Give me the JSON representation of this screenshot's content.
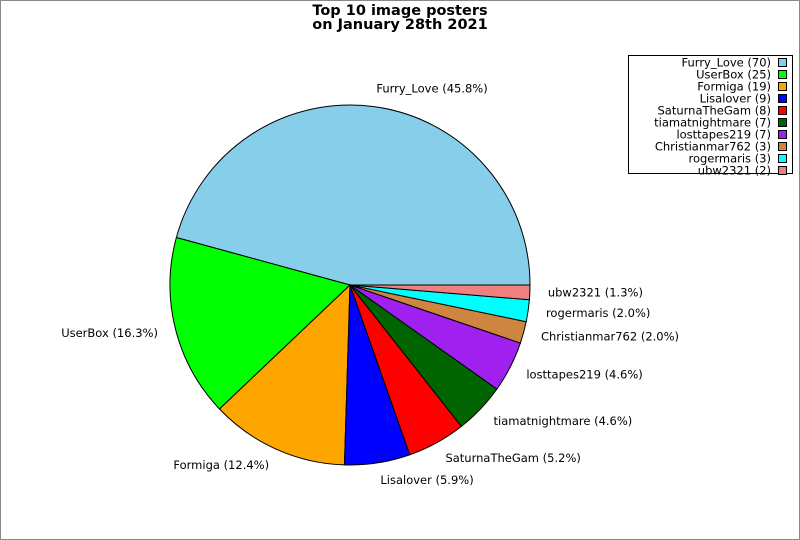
{
  "chart_data": {
    "type": "pie",
    "title_lines": [
      "Top 10 image posters",
      "on January 28th 2021"
    ],
    "categories": [
      "Furry_Love",
      "UserBox",
      "Formiga",
      "Lisalover",
      "SaturnaTheGam",
      "tiamatnightmare",
      "losttapes219",
      "Christianmar762",
      "rogermaris",
      "ubw2321"
    ],
    "values": [
      70,
      25,
      19,
      9,
      8,
      7,
      7,
      3,
      3,
      2
    ],
    "value_labels": [
      "Furry_Love (45.8%)",
      "UserBox (16.3%)",
      "Formiga (12.4%)",
      "Lisalover (5.9%)",
      "SaturnaTheGam (5.2%)",
      "tiamatnightmare (4.6%)",
      "losttapes219 (4.6%)",
      "Christianmar762 (2.0%)",
      "rogermaris (2.0%)",
      "ubw2321 (1.3%)"
    ],
    "legend_labels": [
      "Furry_Love (70)",
      "UserBox (25)",
      "Formiga (19)",
      "Lisalover (9)",
      "SaturnaTheGam (8)",
      "tiamatnightmare (7)",
      "losttapes219 (7)",
      "Christianmar762 (3)",
      "rogermaris (3)",
      "ubw2321 (2)"
    ],
    "colors": [
      "#87ceeb",
      "#00ff00",
      "#ffa500",
      "#0000ff",
      "#ff0000",
      "#006400",
      "#a020f0",
      "#cd853f",
      "#00ffff",
      "#f08080"
    ],
    "legend": "upper right"
  }
}
